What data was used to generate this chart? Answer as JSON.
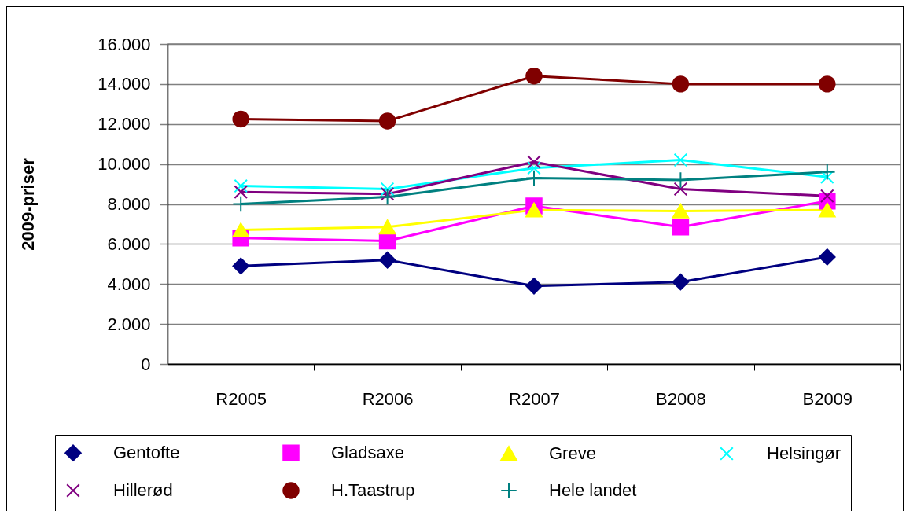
{
  "chart_data": {
    "type": "line",
    "ylabel": "2009-priser",
    "categories": [
      "R2005",
      "R2006",
      "R2007",
      "B2008",
      "B2009"
    ],
    "ylim": [
      0,
      16000
    ],
    "yticks": [
      0,
      {
        "value": 2000,
        "label": "2.000"
      },
      {
        "value": 4000,
        "label": "4.000"
      },
      {
        "value": 6000,
        "label": "6.000"
      },
      {
        "value": 8000,
        "label": "8.000"
      },
      {
        "value": 10000,
        "label": "10.000"
      },
      {
        "value": 12000,
        "label": "12.000"
      },
      {
        "value": 14000,
        "label": "14.000"
      },
      {
        "value": 16000,
        "label": "16.000"
      }
    ],
    "grid": "y",
    "legend": "bottom",
    "series": [
      {
        "name": "Gentofte",
        "color": "#000080",
        "marker": "diamond",
        "values": [
          4900,
          5200,
          3900,
          4100,
          5350
        ]
      },
      {
        "name": "Gladsaxe",
        "color": "#ff00ff",
        "marker": "square",
        "values": [
          6300,
          6150,
          7900,
          6850,
          8150
        ]
      },
      {
        "name": "Greve",
        "color": "#ffff00",
        "marker": "triangle",
        "values": [
          6700,
          6850,
          7700,
          7650,
          7700
        ]
      },
      {
        "name": "Helsingør",
        "color": "#00ffff",
        "marker": "cross",
        "values": [
          8900,
          8750,
          9800,
          10200,
          9350
        ]
      },
      {
        "name": "Hillerød",
        "color": "#800080",
        "marker": "cross",
        "values": [
          8600,
          8500,
          10100,
          8750,
          8400
        ]
      },
      {
        "name": "H.Taastrup",
        "color": "#800000",
        "marker": "circle",
        "values": [
          12250,
          12150,
          14400,
          14000,
          14000
        ]
      },
      {
        "name": "Hele landet",
        "color": "#008080",
        "marker": "plus",
        "values": [
          8000,
          8350,
          9300,
          9200,
          9600
        ]
      }
    ]
  }
}
